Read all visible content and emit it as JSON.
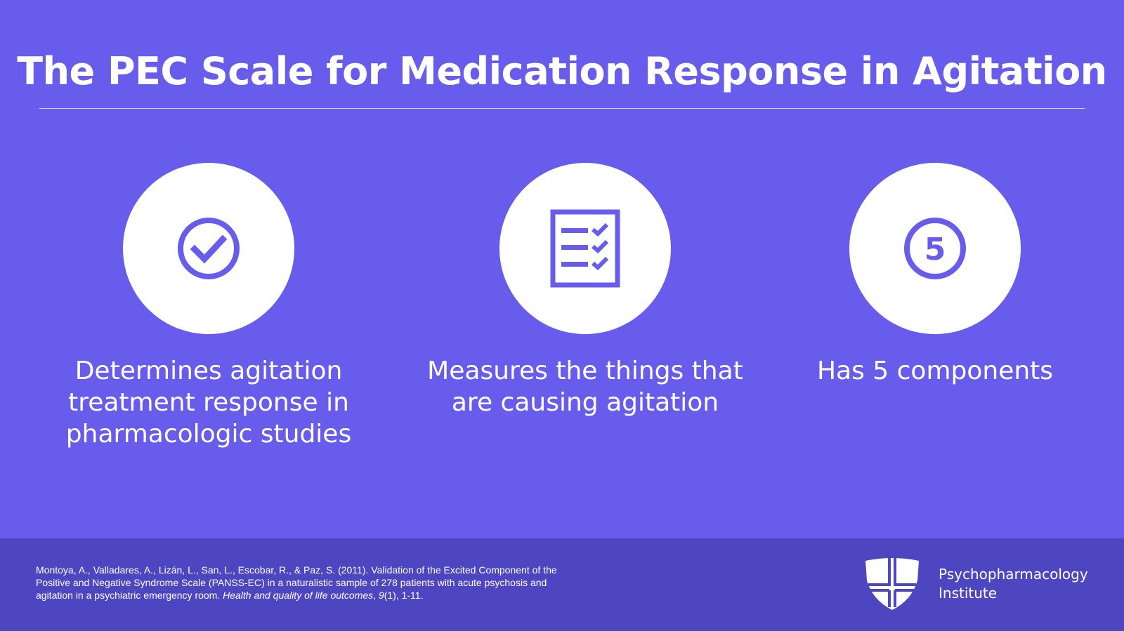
{
  "slide": {
    "title": "The PEC Scale for Medication Response in Agitation"
  },
  "cards": [
    {
      "icon": "check-circle-icon",
      "text": "Determines agitation treatment response in pharmacologic studies"
    },
    {
      "icon": "checklist-icon",
      "text": "Measures the things that are causing agitation"
    },
    {
      "icon": "number-five-circle-icon",
      "text": "Has 5 components",
      "icon_glyph": "5"
    }
  ],
  "footer": {
    "citation_part1": "Montoya, A., Valladares, A., Lizán, L., San, L., Escobar, R., & Paz, S. (2011). Validation of the Excited Component of the Positive and Negative Syndrome Scale (PANSS-EC) in a naturalistic sample of 278 patients with acute psychosis and agitation in a psychiatric emergency room. ",
    "citation_journal": "Health and quality of life outcomes",
    "citation_sep": ", ",
    "citation_volume": "9",
    "citation_tail": "(1), 1-11.",
    "logo_line1": "Psychopharmacology",
    "logo_line2": "Institute"
  },
  "colors": {
    "background": "#675CEC",
    "footer": "#4E45C1",
    "icon": "#675CEC",
    "text": "#FFFFFF"
  }
}
